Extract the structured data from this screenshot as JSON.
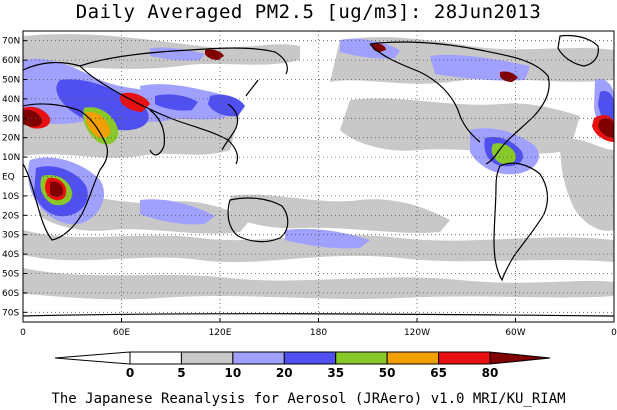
{
  "title": "Daily Averaged PM2.5 [ug/m3]: 28Jun2013",
  "credit": "The Japanese Reanalysis for Aerosol (JRAero) v1.0 MRI/KU_RIAM",
  "map": {
    "lat_labels": [
      "70N",
      "60N",
      "50N",
      "40N",
      "30N",
      "20N",
      "10N",
      "EQ",
      "10S",
      "20S",
      "30S",
      "40S",
      "50S",
      "60S",
      "70S"
    ],
    "lat_values": [
      70,
      60,
      50,
      40,
      30,
      20,
      10,
      0,
      -10,
      -20,
      -30,
      -40,
      -50,
      -60,
      -70
    ],
    "lon_labels": [
      "0",
      "60E",
      "120E",
      "180",
      "120W",
      "60W",
      "0"
    ],
    "lon_values": [
      0,
      60,
      120,
      180,
      240,
      300,
      360
    ],
    "lat_range": [
      -75,
      75
    ],
    "lon_range": [
      0,
      360
    ],
    "gridlines": "dotted"
  },
  "colorbar": {
    "levels": [
      "0",
      "5",
      "10",
      "20",
      "35",
      "50",
      "65",
      "80"
    ],
    "colors": [
      "#ffffff",
      "#c8c8c8",
      "#a0a0ff",
      "#5050f0",
      "#88c828",
      "#f0a000",
      "#e81010",
      "#800000"
    ]
  }
}
